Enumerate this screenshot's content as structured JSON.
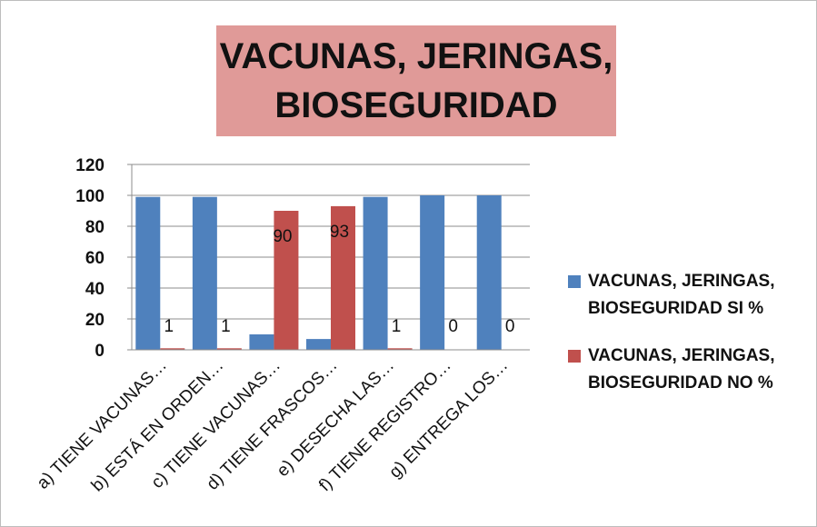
{
  "chart_data": {
    "type": "bar",
    "title": "VACUNAS, JERINGAS, BIOSEGURIDAD",
    "categories": [
      "a) TIENE VACUNAS…",
      "b) ESTÁ EN ORDEN…",
      "c) TIENE VACUNAS…",
      "d) TIENE FRASCOS…",
      "e) DESECHA LAS…",
      "f) TIENE REGISTRO…",
      "g) ENTREGA LOS…"
    ],
    "series": [
      {
        "name": "VACUNAS, JERINGAS, BIOSEGURIDAD SI %",
        "color": "#4f81bd",
        "values": [
          99,
          99,
          10,
          7,
          99,
          100,
          100
        ]
      },
      {
        "name": "VACUNAS, JERINGAS, BIOSEGURIDAD NO %",
        "color": "#c0504d",
        "values": [
          1,
          1,
          90,
          93,
          1,
          0,
          0
        ],
        "data_labels": true
      }
    ],
    "ylim": [
      0,
      120
    ],
    "yticks": [
      0,
      20,
      40,
      60,
      80,
      100,
      120
    ],
    "grid": true,
    "legend": "right"
  }
}
